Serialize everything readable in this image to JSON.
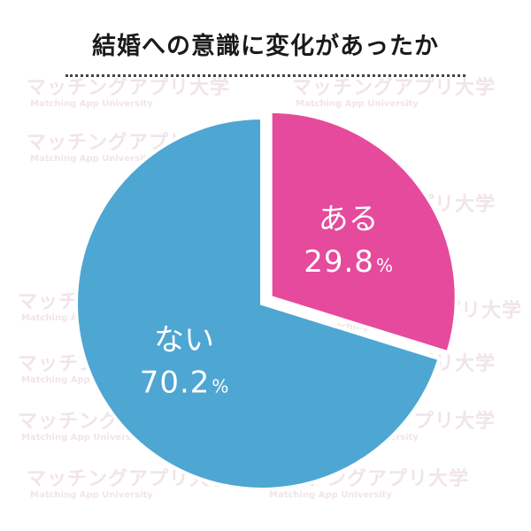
{
  "title": "結婚への意識に変化があったか",
  "watermark": {
    "main": "マッチングアプリ大学",
    "sub": "Matching App University"
  },
  "colors": {
    "ある": "#e64a9c",
    "ない": "#4ea6d3"
  },
  "chart_data": {
    "type": "pie",
    "title": "結婚への意識に変化があったか",
    "slices": [
      {
        "label": "ある",
        "value": 29.8,
        "display": "29.8",
        "unit": "%",
        "color": "#e64a9c",
        "exploded": true
      },
      {
        "label": "ない",
        "value": 70.2,
        "display": "70.2",
        "unit": "%",
        "color": "#4ea6d3",
        "exploded": false
      }
    ]
  }
}
